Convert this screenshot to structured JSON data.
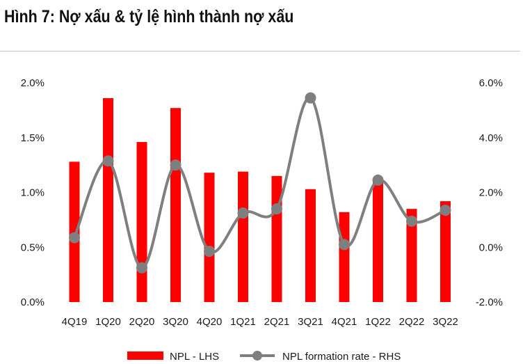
{
  "title": "Hình 7: Nợ xấu & tỷ lệ hình thành nợ xấu",
  "colors": {
    "npl_bar": "#ff0000",
    "formation_line": "#7f7f7f"
  },
  "chart_data": {
    "type": "bar",
    "categories": [
      "4Q19",
      "1Q20",
      "2Q20",
      "3Q20",
      "4Q20",
      "1Q21",
      "2Q21",
      "3Q21",
      "4Q21",
      "1Q22",
      "2Q22",
      "3Q22"
    ],
    "series": [
      {
        "name": "NPL - LHS",
        "type": "bar",
        "axis": "left",
        "values": [
          1.28,
          1.86,
          1.46,
          1.77,
          1.18,
          1.19,
          1.15,
          1.03,
          0.82,
          1.12,
          0.85,
          0.92
        ]
      },
      {
        "name": "NPL formation rate - RHS",
        "type": "line",
        "smooth": true,
        "marker": "circle",
        "axis": "right",
        "values": [
          0.35,
          3.15,
          -0.75,
          3.0,
          -0.15,
          1.25,
          1.4,
          5.45,
          0.1,
          2.45,
          0.95,
          1.35
        ]
      }
    ],
    "y_left": {
      "ticks": [
        "0.0%",
        "0.5%",
        "1.0%",
        "1.5%",
        "2.0%"
      ],
      "range": [
        0,
        2.0
      ],
      "unit": "%"
    },
    "y_right": {
      "ticks": [
        "-2.0%",
        "0.0%",
        "2.0%",
        "4.0%",
        "6.0%"
      ],
      "range": [
        -2.0,
        6.0
      ],
      "unit": "%"
    },
    "grid": false,
    "legend_position": "bottom"
  }
}
